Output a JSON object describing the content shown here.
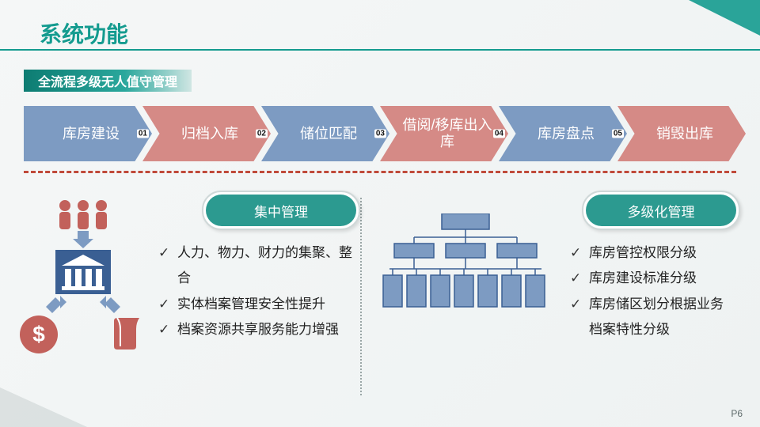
{
  "colors": {
    "teal": "#149b8f",
    "teal_dark": "#0d7c72",
    "blue": "#7d9bc2",
    "blue_border": "#3a5f93",
    "rose": "#d58a86",
    "rose_deep": "#c2615b",
    "dash": "#c04a3a",
    "grey_border": "#cfd8d8",
    "text": "#222222",
    "bg": "#f5f7f7"
  },
  "title": "系统功能",
  "subtitle": "全流程多级无人值守管理",
  "flow": {
    "steps": [
      {
        "label": "库房建设",
        "num": "01",
        "fill": "#7d9bc2"
      },
      {
        "label": "归档入库",
        "num": "02",
        "fill": "#d58a86"
      },
      {
        "label": "储位匹配",
        "num": "03",
        "fill": "#7d9bc2"
      },
      {
        "label": "借阅/移库出入库",
        "num": "04",
        "fill": "#d58a86"
      },
      {
        "label": "库房盘点",
        "num": "05",
        "fill": "#7d9bc2"
      },
      {
        "label": "销毁出库",
        "num": "",
        "fill": "#d58a86"
      }
    ],
    "arrow_height": 70
  },
  "left": {
    "pill": {
      "label": "集中管理",
      "fill": "#2c9a90"
    },
    "bullets": [
      "人力、物力、财力的集聚、整合",
      "实体档案管理安全性提升",
      "档案资源共享服务能力增强"
    ],
    "icons": {
      "people_fill": "#c2615b",
      "bank_fill": "#3a5f93",
      "dollar_fill": "#c2615b",
      "book_fill": "#c2615b",
      "arrow_fill": "#7d9bc2"
    }
  },
  "right": {
    "pill": {
      "label": "多级化管理",
      "fill": "#2c9a90"
    },
    "bullets": [
      "库房管控权限分级",
      "库房建设标准分级",
      "库房储区划分根据业务档案特性分级"
    ],
    "hierarchy": {
      "node_fill": "#7d9bc2",
      "node_border": "#3a5f93",
      "levels": [
        1,
        3,
        7
      ]
    }
  },
  "page": "P6"
}
